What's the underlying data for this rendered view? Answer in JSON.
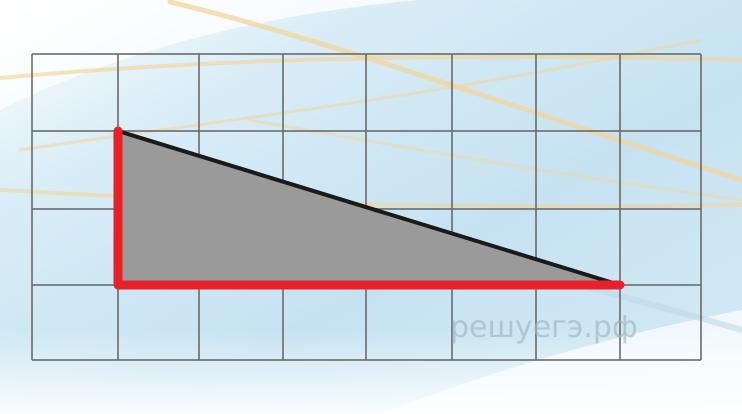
{
  "watermark": "решуегэ.рф",
  "grid": {
    "columns": 8,
    "rows": 4,
    "line_color": "#6b6b6b"
  },
  "triangle": {
    "vertices_in_cells": [
      [
        1,
        1
      ],
      [
        1,
        3
      ],
      [
        7,
        3
      ]
    ],
    "fill_color": "#9a9a9a",
    "hypotenuse_color": "#1a1a1a",
    "leg_color": "#e8202a"
  },
  "colors": {
    "background_light": "#ffffff",
    "background_blue": "#c9e4f2",
    "decor_stroke": "#f3d49a"
  }
}
